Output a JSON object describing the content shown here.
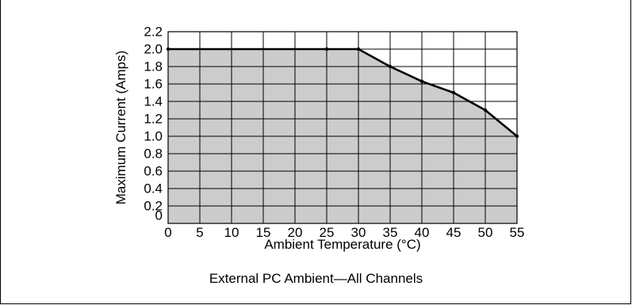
{
  "caption": "External PC Ambient—All Channels",
  "colors": {
    "fill": "#cccccc",
    "line": "#000000",
    "grid": "#000000"
  },
  "chart_data": {
    "type": "area",
    "title": "",
    "xlabel": "Ambient Temperature (°C)",
    "ylabel": "Maximum Current (Amps)",
    "xlim": [
      0,
      55
    ],
    "ylim": [
      0,
      2.2
    ],
    "grid": true,
    "x_ticks": [
      "0",
      "5",
      "10",
      "15",
      "20",
      "25",
      "30",
      "35",
      "40",
      "45",
      "50",
      "55"
    ],
    "y_ticks": [
      "0",
      "0.2",
      "0.4",
      "0.6",
      "0.8",
      "1.0",
      "1.2",
      "1.4",
      "1.6",
      "1.8",
      "2.0",
      "2.2"
    ],
    "series": [
      {
        "x": [
          0,
          25,
          30,
          35,
          40,
          45,
          50,
          55
        ],
        "y": [
          2.0,
          2.0,
          2.0,
          1.8,
          1.63,
          1.5,
          1.3,
          1.0
        ]
      }
    ]
  }
}
